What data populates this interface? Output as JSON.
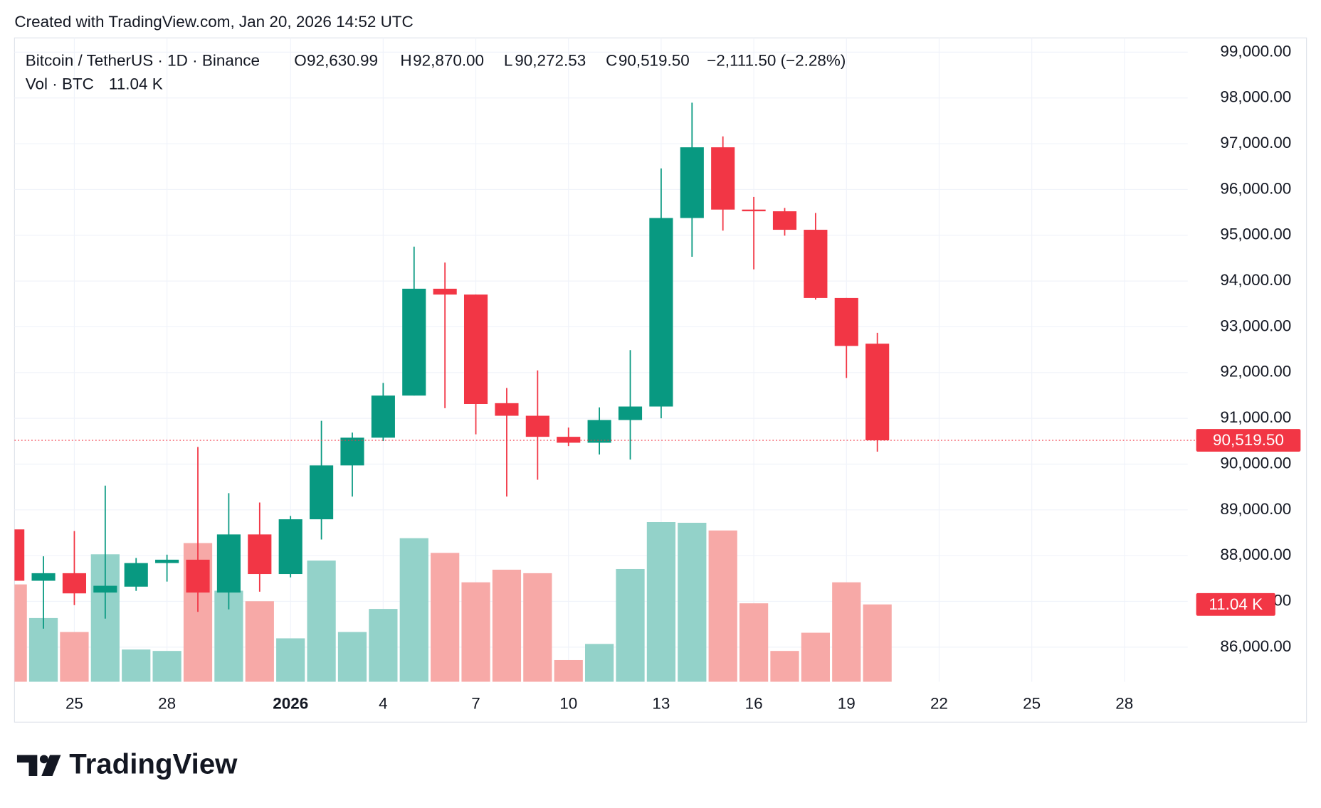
{
  "chart_data": {
    "type": "candlestick",
    "caption": "Created with TradingView.com, Jan 20, 2026 14:52 UTC",
    "title": "Bitcoin / TetherUS · 1D · Binance",
    "legend_values": [
      {
        "key": "O",
        "label": "92,630.99"
      },
      {
        "key": "H",
        "label": "92,870.00"
      },
      {
        "key": "L",
        "label": "90,272.53"
      },
      {
        "key": "C",
        "label": "90,519.50"
      }
    ],
    "change_label": "−2,111.50 (−2.28%)",
    "categories": [
      null,
      null,
      "25",
      null,
      null,
      "28",
      null,
      null,
      null,
      "2026",
      null,
      null,
      "4",
      null,
      null,
      "7",
      null,
      null,
      "10",
      null,
      null,
      "13",
      null,
      null,
      "16",
      null,
      null,
      "19",
      null,
      null,
      "22",
      null,
      null,
      "25",
      null,
      null,
      "28",
      null,
      null
    ],
    "open": [
      88573,
      87451,
      87616,
      87193,
      87322,
      87837,
      87911,
      87193,
      88463,
      87598,
      88794,
      89971,
      90577,
      91497,
      93832,
      93704,
      91331,
      91056,
      90596,
      90467,
      90963,
      91258,
      95377,
      96922,
      95561,
      95524,
      95120,
      93630,
      92630.99,
      null,
      null,
      null,
      null,
      null,
      null,
      null,
      null,
      null,
      null
    ],
    "high": [
      88650,
      87985,
      88536,
      89530,
      87948,
      88021,
      90375,
      89364,
      89161,
      88867,
      90945,
      90688,
      91773,
      94752,
      94403,
      93704,
      91663,
      92048,
      90798,
      91239,
      92490,
      96462,
      97897,
      97161,
      95837,
      95598,
      95487,
      93630,
      92870,
      null,
      null,
      null,
      null,
      null,
      null,
      null,
      null,
      null,
      null
    ],
    "low": [
      87400,
      86403,
      86918,
      86624,
      87230,
      87433,
      86771,
      86826,
      87212,
      87525,
      88352,
      89290,
      90504,
      91497,
      91221,
      90651,
      89290,
      89658,
      90394,
      90210,
      90099,
      91000,
      94531,
      95101,
      94255,
      94991,
      93593,
      91883,
      90272.53,
      null,
      null,
      null,
      null,
      null,
      null,
      null,
      null,
      null,
      null
    ],
    "close": [
      87451,
      87616,
      87175,
      87341,
      87837,
      87911,
      87193,
      88463,
      87598,
      88794,
      89971,
      90577,
      91497,
      93832,
      93704,
      91313,
      91056,
      90596,
      90467,
      90963,
      91258,
      95377,
      96922,
      95561,
      95524,
      95120,
      93630,
      92582,
      90519.5,
      null,
      null,
      null,
      null,
      null,
      null,
      null,
      null,
      null,
      null
    ],
    "up_color": "#089981",
    "down_color": "#f23645",
    "volume": {
      "name": "Vol · BTC",
      "values": [
        13.9,
        9.1,
        7.1,
        18.2,
        4.6,
        4.4,
        19.8,
        13,
        11.5,
        6.2,
        17.3,
        7.1,
        10.4,
        20.5,
        18.4,
        14.2,
        16,
        15.5,
        3.1,
        5.4,
        16.1,
        22.8,
        22.7,
        21.6,
        11.2,
        4.4,
        7,
        14.2,
        11.04,
        null,
        null,
        null,
        null,
        null,
        null,
        null,
        null,
        null,
        null
      ],
      "last_label": "11.04 K",
      "up_color": "#93d2c9",
      "down_color": "#f7a9a7"
    },
    "last_price": {
      "value": 90519.5,
      "label": "90,519.50"
    },
    "ylim": [
      85244,
      99313
    ],
    "yticks": [
      {
        "value": 86000,
        "label": "86,000.00"
      },
      {
        "value": 87000,
        "label": "87,000.00"
      },
      {
        "value": 88000,
        "label": "88,000.00"
      },
      {
        "value": 89000,
        "label": "89,000.00"
      },
      {
        "value": 90000,
        "label": "90,000.00"
      },
      {
        "value": 91000,
        "label": "91,000.00"
      },
      {
        "value": 92000,
        "label": "92,000.00"
      },
      {
        "value": 93000,
        "label": "93,000.00"
      },
      {
        "value": 94000,
        "label": "94,000.00"
      },
      {
        "value": 95000,
        "label": "95,000.00"
      },
      {
        "value": 96000,
        "label": "96,000.00"
      },
      {
        "value": 97000,
        "label": "97,000.00"
      },
      {
        "value": 98000,
        "label": "98,000.00"
      },
      {
        "value": 99000,
        "label": "99,000.00"
      }
    ],
    "grid": true,
    "brand": "TradingView"
  }
}
